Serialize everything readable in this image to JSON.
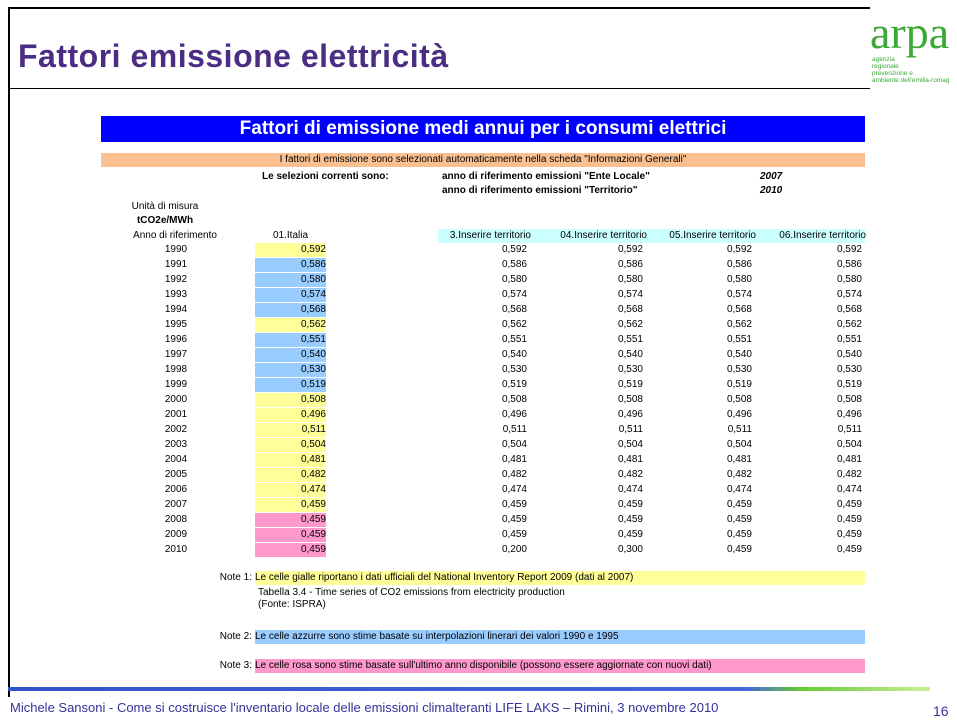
{
  "header": {
    "title": "Fattori emissione elettricità"
  },
  "logo": {
    "name": "arpa",
    "lines": [
      "agenzia",
      "regionale",
      "prevenzione e",
      "ambiente dell'emilia-romag"
    ]
  },
  "table": {
    "title": "Fattori di emissione medi annui per i consumi elettrici",
    "info": "I fattori di emissione sono selezionati automaticamente nella scheda \"Informazioni Generali\"",
    "selections_label": "Le selezioni correnti sono:",
    "selections": [
      {
        "label": "anno di riferimento emissioni \"Ente Locale\"",
        "value": "2007"
      },
      {
        "label": "anno di riferimento emissioni \"Territorio\"",
        "value": "2010"
      }
    ],
    "unit_label": "Unità di misura",
    "unit": "tCO2e/MWh",
    "year_header": "Anno di riferimento",
    "columns": [
      "01.Italia",
      "3.Inserire territorio",
      "04.Inserire territorio",
      "05.Inserire territorio",
      "06.Inserire territorio"
    ],
    "rows": [
      [
        "1990",
        "0,592",
        "0,592",
        "0,592",
        "0,592",
        "0,592"
      ],
      [
        "1991",
        "0,586",
        "0,586",
        "0,586",
        "0,586",
        "0,586"
      ],
      [
        "1992",
        "0,580",
        "0,580",
        "0,580",
        "0,580",
        "0,580"
      ],
      [
        "1993",
        "0,574",
        "0,574",
        "0,574",
        "0,574",
        "0,574"
      ],
      [
        "1994",
        "0,568",
        "0,568",
        "0,568",
        "0,568",
        "0,568"
      ],
      [
        "1995",
        "0,562",
        "0,562",
        "0,562",
        "0,562",
        "0,562"
      ],
      [
        "1996",
        "0,551",
        "0,551",
        "0,551",
        "0,551",
        "0,551"
      ],
      [
        "1997",
        "0,540",
        "0,540",
        "0,540",
        "0,540",
        "0,540"
      ],
      [
        "1998",
        "0,530",
        "0,530",
        "0,530",
        "0,530",
        "0,530"
      ],
      [
        "1999",
        "0,519",
        "0,519",
        "0,519",
        "0,519",
        "0,519"
      ],
      [
        "2000",
        "0,508",
        "0,508",
        "0,508",
        "0,508",
        "0,508"
      ],
      [
        "2001",
        "0,496",
        "0,496",
        "0,496",
        "0,496",
        "0,496"
      ],
      [
        "2002",
        "0,511",
        "0,511",
        "0,511",
        "0,511",
        "0,511"
      ],
      [
        "2003",
        "0,504",
        "0,504",
        "0,504",
        "0,504",
        "0,504"
      ],
      [
        "2004",
        "0,481",
        "0,481",
        "0,481",
        "0,481",
        "0,481"
      ],
      [
        "2005",
        "0,482",
        "0,482",
        "0,482",
        "0,482",
        "0,482"
      ],
      [
        "2006",
        "0,474",
        "0,474",
        "0,474",
        "0,474",
        "0,474"
      ],
      [
        "2007",
        "0,459",
        "0,459",
        "0,459",
        "0,459",
        "0,459"
      ],
      [
        "2008",
        "0,459",
        "0,459",
        "0,459",
        "0,459",
        "0,459"
      ],
      [
        "2009",
        "0,459",
        "0,459",
        "0,459",
        "0,459",
        "0,459"
      ],
      [
        "2010",
        "0,459",
        "0,200",
        "0,300",
        "0,459",
        "0,459"
      ]
    ],
    "cell_colors": [
      "#ffff99",
      "#99ccff",
      "#99ccff",
      "#99ccff",
      "#99ccff",
      "#ffff99",
      "#99ccff",
      "#99ccff",
      "#99ccff",
      "#99ccff",
      "#ffff99",
      "#ffff99",
      "#ffff99",
      "#ffff99",
      "#ffff99",
      "#ffff99",
      "#ffff99",
      "#ffff99",
      "#ff99cc",
      "#ff99cc",
      "#ff99cc"
    ]
  },
  "notes": [
    {
      "label": "Note 1:",
      "text": "Le celle gialle riportano i dati ufficiali del National Inventory Report 2009 (dati al 2007)",
      "color": "#ffff99",
      "extra": [
        "Tabella 3.4 - Time series of CO2 emissions from electricity production",
        "(Fonte: ISPRA)"
      ]
    },
    {
      "label": "Note 2:",
      "text": "Le celle azzurre sono stime basate su interpolazioni linerari dei valori 1990 e 1995",
      "color": "#99ccff"
    },
    {
      "label": "Note 3:",
      "text": "Le celle rosa sono stime basate sull'ultimo anno disponibile (possono essere aggiornate con nuovi dati)",
      "color": "#ff99cc"
    }
  ],
  "footer": {
    "text": "Michele Sansoni - Come si costruisce l'inventario locale delle emissioni climalteranti LIFE LAKS – Rimini, 3 novembre 2010",
    "page": "16"
  }
}
